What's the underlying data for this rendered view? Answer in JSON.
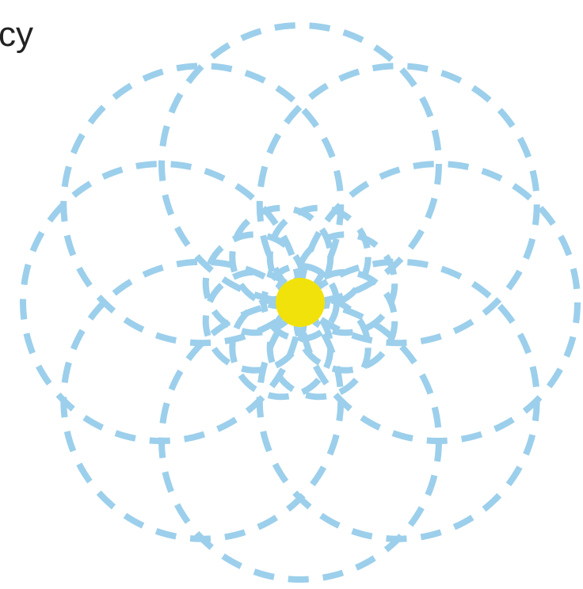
{
  "corner_text": "cy",
  "colors": {
    "circle_stroke": "#9ccfeb",
    "center_dot": "#f2e20c",
    "text": "#222222",
    "background": "#ffffff"
  },
  "pattern": {
    "outer_ring_circles": 8,
    "inner_ring_circles": 8,
    "center_rings": 1,
    "line_style": "dashed"
  }
}
